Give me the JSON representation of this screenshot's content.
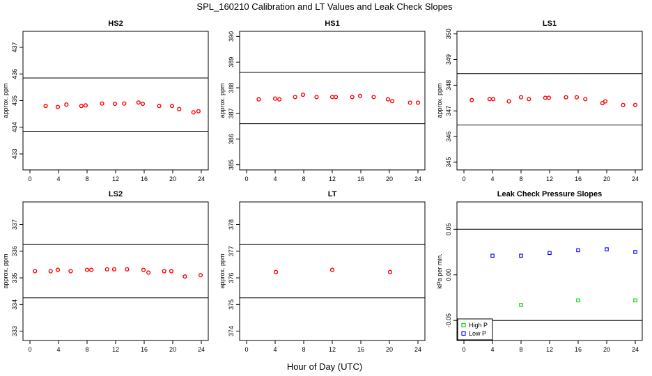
{
  "figure": {
    "title": "SPL_160210  Calibration and LT Values and Leak Check Slopes",
    "xlabel": "Hour of Day (UTC)"
  },
  "colors": {
    "calibration_points": "#ff0000",
    "high_p": "#00cc00",
    "low_p": "#0000ff",
    "lines": "#000000"
  },
  "chart_data": [
    {
      "id": "hs2",
      "type": "scatter",
      "title": "HS2",
      "ylabel": "approx. ppm",
      "xlim": [
        0,
        24
      ],
      "xticks": [
        0,
        4,
        8,
        12,
        16,
        20,
        24
      ],
      "ylim": [
        432.4,
        437.6
      ],
      "yticks": [
        433,
        434,
        435,
        436,
        437
      ],
      "hlines": [
        435.85,
        433.85
      ],
      "series": [
        {
          "name": "calibration",
          "marker": "circle",
          "color": "#ff0000",
          "x": [
            2.2,
            3.9,
            5.1,
            7.2,
            7.8,
            10.1,
            11.9,
            13.2,
            15.2,
            15.8,
            18.1,
            19.9,
            20.9,
            22.9,
            23.6
          ],
          "y": [
            434.8,
            434.76,
            434.85,
            434.8,
            434.82,
            434.89,
            434.88,
            434.89,
            434.93,
            434.88,
            434.8,
            434.8,
            434.68,
            434.56,
            434.6
          ]
        }
      ]
    },
    {
      "id": "hs1",
      "type": "scatter",
      "title": "HS1",
      "ylabel": "approx. ppm",
      "xlim": [
        0,
        24
      ],
      "xticks": [
        0,
        4,
        8,
        12,
        16,
        20,
        24
      ],
      "ylim": [
        384.8,
        390.2
      ],
      "yticks": [
        385,
        386,
        387,
        388,
        389,
        390
      ],
      "hlines": [
        388.6,
        386.6
      ],
      "series": [
        {
          "name": "calibration",
          "marker": "circle",
          "color": "#ff0000",
          "x": [
            1.7,
            4.0,
            4.6,
            6.8,
            7.9,
            9.8,
            12.0,
            12.5,
            14.8,
            15.9,
            17.8,
            19.8,
            20.4,
            22.9,
            24.0
          ],
          "y": [
            387.55,
            387.58,
            387.55,
            387.64,
            387.73,
            387.64,
            387.64,
            387.64,
            387.64,
            387.68,
            387.64,
            387.55,
            387.48,
            387.42,
            387.42
          ]
        }
      ]
    },
    {
      "id": "ls1",
      "type": "scatter",
      "title": "LS1",
      "ylabel": "approx. ppm",
      "xlim": [
        0,
        24
      ],
      "xticks": [
        0,
        4,
        8,
        12,
        16,
        20,
        24
      ],
      "ylim": [
        344.7,
        350.1
      ],
      "yticks": [
        345,
        346,
        347,
        348,
        349,
        350
      ],
      "hlines": [
        348.45,
        346.45
      ],
      "series": [
        {
          "name": "calibration",
          "marker": "circle",
          "color": "#ff0000",
          "x": [
            1.1,
            3.6,
            4.1,
            6.3,
            8.0,
            9.1,
            11.4,
            11.9,
            14.3,
            15.8,
            17.0,
            19.4,
            19.8,
            22.3,
            24.0
          ],
          "y": [
            347.42,
            347.46,
            347.46,
            347.37,
            347.53,
            347.46,
            347.51,
            347.51,
            347.53,
            347.53,
            347.46,
            347.3,
            347.37,
            347.23,
            347.23
          ]
        }
      ]
    },
    {
      "id": "ls2",
      "type": "scatter",
      "title": "LS2",
      "ylabel": "approx. ppm",
      "xlim": [
        0,
        24
      ],
      "xticks": [
        0,
        4,
        8,
        12,
        16,
        20,
        24
      ],
      "ylim": [
        332.65,
        337.85
      ],
      "yticks": [
        333,
        334,
        335,
        336,
        337
      ],
      "hlines": [
        336.25,
        334.25
      ],
      "series": [
        {
          "name": "calibration",
          "marker": "circle",
          "color": "#ff0000",
          "x": [
            0.7,
            2.9,
            3.9,
            5.7,
            8.0,
            8.6,
            10.8,
            11.8,
            13.6,
            15.9,
            16.6,
            18.8,
            19.8,
            21.7,
            23.9
          ],
          "y": [
            335.25,
            335.25,
            335.3,
            335.25,
            335.3,
            335.3,
            335.32,
            335.32,
            335.32,
            335.3,
            335.2,
            335.25,
            335.25,
            335.05,
            335.1
          ]
        }
      ]
    },
    {
      "id": "lt",
      "type": "scatter",
      "title": "LT",
      "ylabel": "approx. ppm",
      "xlim": [
        0,
        24
      ],
      "xticks": [
        0,
        4,
        8,
        12,
        16,
        20,
        24
      ],
      "ylim": [
        373.65,
        378.85
      ],
      "yticks": [
        374,
        375,
        376,
        377,
        378
      ],
      "hlines": [
        377.25,
        375.25
      ],
      "series": [
        {
          "name": "LT",
          "marker": "circle",
          "color": "#ff0000",
          "x": [
            4.1,
            12.0,
            20.1
          ],
          "y": [
            376.22,
            376.3,
            376.22
          ]
        }
      ]
    },
    {
      "id": "leak",
      "type": "scatter",
      "title": "Leak Check Pressure Slopes",
      "ylabel": "kPa per min.",
      "xlim": [
        0,
        24
      ],
      "xticks": [
        0,
        4,
        8,
        12,
        16,
        20,
        24
      ],
      "ylim": [
        -0.072,
        0.08
      ],
      "yticks": [
        -0.05,
        0.0,
        0.05
      ],
      "ytick_labels": [
        "-0.05",
        "0.00",
        "0.05"
      ],
      "hlines": [
        0.05,
        -0.05
      ],
      "legend": {
        "location": "bottom-left",
        "entries": [
          "High P",
          "Low P"
        ]
      },
      "series": [
        {
          "name": "High P",
          "marker": "square",
          "color": "#00cc00",
          "x": [
            8,
            16,
            24
          ],
          "y": [
            -0.033,
            -0.028,
            -0.028
          ]
        },
        {
          "name": "Low P",
          "marker": "square",
          "color": "#0000ff",
          "x": [
            4,
            8,
            12,
            16,
            20,
            24
          ],
          "y": [
            0.021,
            0.021,
            0.024,
            0.027,
            0.028,
            0.025
          ]
        }
      ]
    }
  ]
}
